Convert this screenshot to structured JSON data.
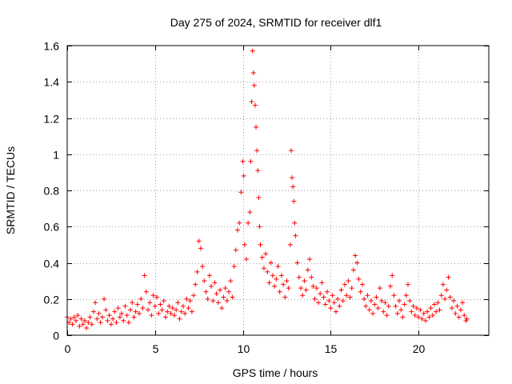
{
  "chart_data": {
    "type": "scatter",
    "title": "Day 275 of 2024, SRMTID for receiver dlf1",
    "xlabel": "GPS time / hours",
    "ylabel": "SRMTID / TECUs",
    "xlim": [
      0,
      24
    ],
    "ylim": [
      0,
      1.6
    ],
    "xticks": [
      0,
      5,
      10,
      15,
      20
    ],
    "xtick_labels": [
      "0",
      "5",
      "10",
      "15",
      "20"
    ],
    "yticks": [
      0,
      0.2,
      0.4,
      0.6,
      0.8,
      1.0,
      1.2,
      1.4,
      1.6
    ],
    "ytick_labels": [
      "0",
      "0.2",
      "0.4",
      "0.6",
      "0.8",
      "1",
      "1.2",
      "1.4",
      "1.6"
    ],
    "grid": true,
    "marker": "+",
    "color": "#ff0000",
    "series": [
      {
        "name": "SRMTID",
        "points": [
          [
            0.0,
            0.1
          ],
          [
            0.1,
            0.07
          ],
          [
            0.2,
            0.09
          ],
          [
            0.3,
            0.06
          ],
          [
            0.4,
            0.1
          ],
          [
            0.5,
            0.08
          ],
          [
            0.6,
            0.11
          ],
          [
            0.7,
            0.05
          ],
          [
            0.8,
            0.09
          ],
          [
            0.9,
            0.06
          ],
          [
            1.0,
            0.08
          ],
          [
            1.1,
            0.04
          ],
          [
            1.2,
            0.07
          ],
          [
            1.3,
            0.1
          ],
          [
            1.4,
            0.06
          ],
          [
            1.5,
            0.13
          ],
          [
            1.6,
            0.18
          ],
          [
            1.7,
            0.09
          ],
          [
            1.8,
            0.12
          ],
          [
            1.9,
            0.07
          ],
          [
            2.0,
            0.1
          ],
          [
            2.1,
            0.2
          ],
          [
            2.2,
            0.14
          ],
          [
            2.3,
            0.08
          ],
          [
            2.4,
            0.11
          ],
          [
            2.5,
            0.06
          ],
          [
            2.6,
            0.09
          ],
          [
            2.7,
            0.13
          ],
          [
            2.8,
            0.07
          ],
          [
            2.9,
            0.15
          ],
          [
            3.0,
            0.1
          ],
          [
            3.1,
            0.12
          ],
          [
            3.2,
            0.08
          ],
          [
            3.3,
            0.16
          ],
          [
            3.4,
            0.11
          ],
          [
            3.5,
            0.07
          ],
          [
            3.6,
            0.14
          ],
          [
            3.7,
            0.18
          ],
          [
            3.8,
            0.1
          ],
          [
            3.9,
            0.13
          ],
          [
            4.0,
            0.17
          ],
          [
            4.1,
            0.12
          ],
          [
            4.2,
            0.2
          ],
          [
            4.3,
            0.15
          ],
          [
            4.4,
            0.33
          ],
          [
            4.5,
            0.24
          ],
          [
            4.6,
            0.14
          ],
          [
            4.7,
            0.18
          ],
          [
            4.8,
            0.11
          ],
          [
            4.9,
            0.22
          ],
          [
            5.0,
            0.16
          ],
          [
            5.1,
            0.21
          ],
          [
            5.2,
            0.12
          ],
          [
            5.3,
            0.17
          ],
          [
            5.4,
            0.14
          ],
          [
            5.5,
            0.19
          ],
          [
            5.6,
            0.1
          ],
          [
            5.7,
            0.13
          ],
          [
            5.8,
            0.16
          ],
          [
            5.9,
            0.12
          ],
          [
            6.0,
            0.15
          ],
          [
            6.1,
            0.11
          ],
          [
            6.2,
            0.14
          ],
          [
            6.3,
            0.18
          ],
          [
            6.4,
            0.09
          ],
          [
            6.5,
            0.13
          ],
          [
            6.6,
            0.16
          ],
          [
            6.7,
            0.12
          ],
          [
            6.8,
            0.2
          ],
          [
            6.9,
            0.15
          ],
          [
            7.0,
            0.19
          ],
          [
            7.1,
            0.13
          ],
          [
            7.2,
            0.22
          ],
          [
            7.3,
            0.28
          ],
          [
            7.4,
            0.35
          ],
          [
            7.5,
            0.52
          ],
          [
            7.6,
            0.48
          ],
          [
            7.7,
            0.38
          ],
          [
            7.8,
            0.3
          ],
          [
            7.9,
            0.24
          ],
          [
            8.0,
            0.2
          ],
          [
            8.1,
            0.33
          ],
          [
            8.2,
            0.27
          ],
          [
            8.3,
            0.19
          ],
          [
            8.4,
            0.29
          ],
          [
            8.5,
            0.23
          ],
          [
            8.6,
            0.18
          ],
          [
            8.7,
            0.25
          ],
          [
            8.8,
            0.15
          ],
          [
            8.9,
            0.21
          ],
          [
            9.0,
            0.26
          ],
          [
            9.1,
            0.19
          ],
          [
            9.2,
            0.24
          ],
          [
            9.3,
            0.3
          ],
          [
            9.4,
            0.21
          ],
          [
            9.5,
            0.38
          ],
          [
            9.6,
            0.47
          ],
          [
            9.7,
            0.58
          ],
          [
            9.8,
            0.62
          ],
          [
            9.9,
            0.79
          ],
          [
            10.0,
            0.96
          ],
          [
            10.05,
            0.88
          ],
          [
            10.1,
            0.5
          ],
          [
            10.2,
            0.42
          ],
          [
            10.3,
            0.62
          ],
          [
            10.4,
            0.68
          ],
          [
            10.45,
            0.96
          ],
          [
            10.5,
            1.29
          ],
          [
            10.55,
            1.57
          ],
          [
            10.6,
            1.45
          ],
          [
            10.65,
            1.38
          ],
          [
            10.7,
            1.27
          ],
          [
            10.75,
            1.15
          ],
          [
            10.8,
            1.02
          ],
          [
            10.85,
            0.91
          ],
          [
            10.9,
            0.76
          ],
          [
            10.95,
            0.6
          ],
          [
            11.0,
            0.5
          ],
          [
            11.1,
            0.43
          ],
          [
            11.2,
            0.37
          ],
          [
            11.3,
            0.45
          ],
          [
            11.4,
            0.35
          ],
          [
            11.5,
            0.29
          ],
          [
            11.6,
            0.4
          ],
          [
            11.7,
            0.33
          ],
          [
            11.8,
            0.27
          ],
          [
            11.9,
            0.31
          ],
          [
            12.0,
            0.38
          ],
          [
            12.1,
            0.24
          ],
          [
            12.2,
            0.33
          ],
          [
            12.3,
            0.28
          ],
          [
            12.4,
            0.21
          ],
          [
            12.5,
            0.3
          ],
          [
            12.6,
            0.26
          ],
          [
            12.7,
            0.5
          ],
          [
            12.75,
            1.02
          ],
          [
            12.8,
            0.87
          ],
          [
            12.85,
            0.82
          ],
          [
            12.9,
            0.74
          ],
          [
            12.95,
            0.62
          ],
          [
            13.0,
            0.55
          ],
          [
            13.1,
            0.4
          ],
          [
            13.2,
            0.32
          ],
          [
            13.3,
            0.26
          ],
          [
            13.4,
            0.22
          ],
          [
            13.5,
            0.3
          ],
          [
            13.6,
            0.25
          ],
          [
            13.7,
            0.36
          ],
          [
            13.8,
            0.42
          ],
          [
            13.9,
            0.32
          ],
          [
            14.0,
            0.27
          ],
          [
            14.1,
            0.2
          ],
          [
            14.2,
            0.26
          ],
          [
            14.3,
            0.18
          ],
          [
            14.4,
            0.23
          ],
          [
            14.5,
            0.29
          ],
          [
            14.6,
            0.21
          ],
          [
            14.7,
            0.17
          ],
          [
            14.8,
            0.24
          ],
          [
            14.9,
            0.19
          ],
          [
            15.0,
            0.15
          ],
          [
            15.1,
            0.22
          ],
          [
            15.2,
            0.18
          ],
          [
            15.3,
            0.13
          ],
          [
            15.4,
            0.2
          ],
          [
            15.5,
            0.16
          ],
          [
            15.6,
            0.25
          ],
          [
            15.7,
            0.19
          ],
          [
            15.8,
            0.28
          ],
          [
            15.9,
            0.22
          ],
          [
            16.0,
            0.3
          ],
          [
            16.1,
            0.21
          ],
          [
            16.2,
            0.26
          ],
          [
            16.3,
            0.36
          ],
          [
            16.4,
            0.44
          ],
          [
            16.5,
            0.4
          ],
          [
            16.6,
            0.31
          ],
          [
            16.7,
            0.24
          ],
          [
            16.8,
            0.28
          ],
          [
            16.9,
            0.2
          ],
          [
            17.0,
            0.16
          ],
          [
            17.1,
            0.22
          ],
          [
            17.2,
            0.14
          ],
          [
            17.3,
            0.19
          ],
          [
            17.4,
            0.12
          ],
          [
            17.5,
            0.17
          ],
          [
            17.6,
            0.21
          ],
          [
            17.7,
            0.15
          ],
          [
            17.8,
            0.26
          ],
          [
            17.9,
            0.19
          ],
          [
            18.0,
            0.13
          ],
          [
            18.1,
            0.18
          ],
          [
            18.2,
            0.11
          ],
          [
            18.3,
            0.16
          ],
          [
            18.4,
            0.27
          ],
          [
            18.5,
            0.33
          ],
          [
            18.6,
            0.22
          ],
          [
            18.7,
            0.16
          ],
          [
            18.8,
            0.12
          ],
          [
            18.9,
            0.19
          ],
          [
            19.0,
            0.14
          ],
          [
            19.1,
            0.1
          ],
          [
            19.2,
            0.17
          ],
          [
            19.3,
            0.22
          ],
          [
            19.4,
            0.28
          ],
          [
            19.5,
            0.19
          ],
          [
            19.6,
            0.13
          ],
          [
            19.7,
            0.16
          ],
          [
            19.8,
            0.11
          ],
          [
            19.9,
            0.15
          ],
          [
            20.0,
            0.1
          ],
          [
            20.1,
            0.14
          ],
          [
            20.2,
            0.09
          ],
          [
            20.3,
            0.12
          ],
          [
            20.4,
            0.08
          ],
          [
            20.5,
            0.13
          ],
          [
            20.6,
            0.1
          ],
          [
            20.7,
            0.15
          ],
          [
            20.8,
            0.11
          ],
          [
            20.9,
            0.17
          ],
          [
            21.0,
            0.13
          ],
          [
            21.1,
            0.18
          ],
          [
            21.2,
            0.14
          ],
          [
            21.3,
            0.22
          ],
          [
            21.4,
            0.28
          ],
          [
            21.5,
            0.2
          ],
          [
            21.6,
            0.25
          ],
          [
            21.7,
            0.32
          ],
          [
            21.8,
            0.21
          ],
          [
            21.9,
            0.15
          ],
          [
            22.0,
            0.19
          ],
          [
            22.1,
            0.12
          ],
          [
            22.2,
            0.16
          ],
          [
            22.3,
            0.1
          ],
          [
            22.4,
            0.14
          ],
          [
            22.5,
            0.18
          ],
          [
            22.6,
            0.11
          ],
          [
            22.7,
            0.08
          ],
          [
            22.75,
            0.09
          ]
        ]
      }
    ]
  }
}
